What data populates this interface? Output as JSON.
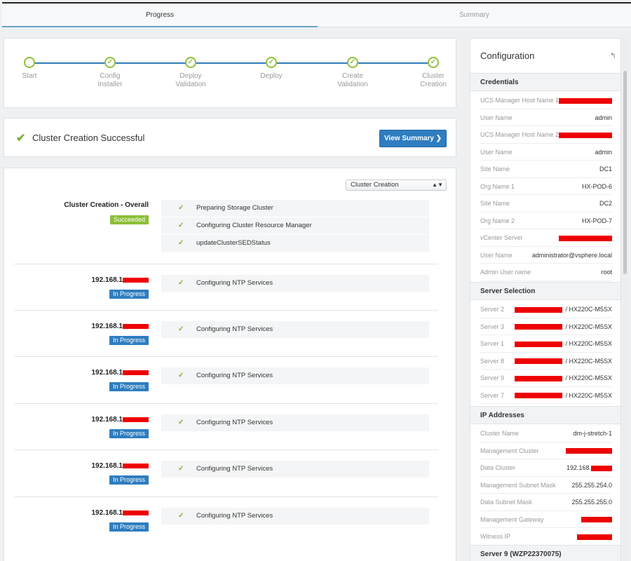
{
  "tabs": [
    {
      "label": "Progress",
      "active": true
    },
    {
      "label": "Summary",
      "active": false
    }
  ],
  "stepper": {
    "steps": [
      {
        "label": "Start",
        "done": false
      },
      {
        "label": "Config\nInstaller",
        "done": true
      },
      {
        "label": "Deploy\nValidation",
        "done": true
      },
      {
        "label": "Deploy",
        "done": true
      },
      {
        "label": "Create\nValidation",
        "done": true
      },
      {
        "label": "Cluster\nCreation",
        "done": true
      }
    ]
  },
  "banner": {
    "check": "✔",
    "title": "Cluster Creation Successful",
    "button_label": "View Summary ❯"
  },
  "details": {
    "selector": "Cluster Creation",
    "overall": {
      "name": "Cluster Creation - Overall",
      "status": "Succeeded",
      "tasks": [
        "Preparing Storage Cluster",
        "Configuring Cluster Resource Manager",
        "updateClusterSEDStatus"
      ]
    },
    "nodes": [
      {
        "ip_prefix": "192.168.1",
        "status": "In Progress",
        "tasks": [
          "Configuring NTP Services"
        ]
      },
      {
        "ip_prefix": "192.168.1",
        "status": "In Progress",
        "tasks": [
          "Configuring NTP Services"
        ]
      },
      {
        "ip_prefix": "192.168.1",
        "status": "In Progress",
        "tasks": [
          "Configuring NTP Services"
        ]
      },
      {
        "ip_prefix": "192.168.1",
        "status": "In Progress",
        "tasks": [
          "Configuring NTP Services"
        ]
      },
      {
        "ip_prefix": "192.168.1",
        "status": "In Progress",
        "tasks": [
          "Configuring NTP Services"
        ]
      },
      {
        "ip_prefix": "192.168.1",
        "status": "In Progress",
        "tasks": [
          "Configuring NTP Services"
        ]
      }
    ]
  },
  "config": {
    "title": "Configuration",
    "back_icon": "↰",
    "sections": [
      {
        "heading": "Credentials",
        "rows": [
          {
            "key": "UCS Manager Host Name 1",
            "value": "",
            "redacted": true
          },
          {
            "key": "User Name",
            "value": "admin"
          },
          {
            "key": "UCS Manager Host Name 2",
            "value": "",
            "redacted": true
          },
          {
            "key": "User Name",
            "value": "admin"
          },
          {
            "key": "Site Name",
            "value": "DC1"
          },
          {
            "key": "Org Name 1",
            "value": "HX-POD-6"
          },
          {
            "key": "Site Name",
            "value": "DC2"
          },
          {
            "key": "Org Name 2",
            "value": "HX-POD-7"
          },
          {
            "key": "vCenter Server",
            "value": "",
            "redacted": true
          },
          {
            "key": "User Name",
            "value": "administrator@vsphere.local"
          },
          {
            "key": "Admin User name",
            "value": "root"
          }
        ]
      },
      {
        "heading": "Server Selection",
        "rows": [
          {
            "key": "Server 2",
            "value": "/ HX220C-M5SX",
            "redacted": true
          },
          {
            "key": "Server 3",
            "value": "/ HX220C-M5SX",
            "redacted": true
          },
          {
            "key": "Server 1",
            "value": "/ HX220C-M5SX",
            "redacted": true
          },
          {
            "key": "Server 8",
            "value": "/ HX220C-M5SX",
            "redacted": true
          },
          {
            "key": "Server 9",
            "value": "/ HX220C-M5SX",
            "redacted": true
          },
          {
            "key": "Server 7",
            "value": "/ HX220C-M5SX",
            "redacted": true
          }
        ]
      },
      {
        "heading": "IP Addresses",
        "rows": [
          {
            "key": "Cluster Name",
            "value": "dm-j-stretch-1"
          },
          {
            "key": "Management Cluster",
            "value": "",
            "redacted": true
          },
          {
            "key": "Data Cluster",
            "value": "192.168.",
            "redacted": true
          },
          {
            "key": "Management Subnet Mask",
            "value": "255.255.254.0"
          },
          {
            "key": "Data Subnet Mask",
            "value": "255.255.255.0"
          },
          {
            "key": "Management Gateway",
            "value": "",
            "redacted": true
          },
          {
            "key": "Witness IP",
            "value": "",
            "redacted": true
          }
        ]
      },
      {
        "heading": "Server 9 (WZP22370075)",
        "rows": []
      }
    ]
  },
  "colors": {
    "accent_blue": "#2e7dc0",
    "success_green": "#8cbf37",
    "redaction": "#ee0000"
  }
}
